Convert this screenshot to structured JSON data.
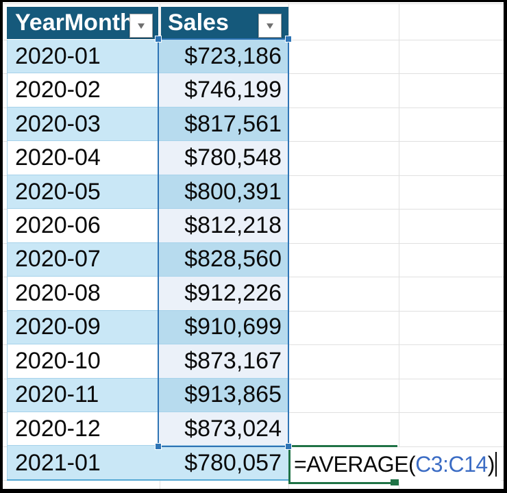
{
  "sheet": {
    "header": {
      "columns": [
        "YearMonth",
        "Sales"
      ],
      "filter_icon": "▼"
    },
    "rows": [
      {
        "year_month": "2020-01",
        "sales": "$723,186",
        "selected": true
      },
      {
        "year_month": "2020-02",
        "sales": "$746,199",
        "selected": true
      },
      {
        "year_month": "2020-03",
        "sales": "$817,561",
        "selected": true
      },
      {
        "year_month": "2020-04",
        "sales": "$780,548",
        "selected": true
      },
      {
        "year_month": "2020-05",
        "sales": "$800,391",
        "selected": true
      },
      {
        "year_month": "2020-06",
        "sales": "$812,218",
        "selected": true
      },
      {
        "year_month": "2020-07",
        "sales": "$828,560",
        "selected": true
      },
      {
        "year_month": "2020-08",
        "sales": "$912,226",
        "selected": true
      },
      {
        "year_month": "2020-09",
        "sales": "$910,699",
        "selected": true
      },
      {
        "year_month": "2020-10",
        "sales": "$873,167",
        "selected": true
      },
      {
        "year_month": "2020-11",
        "sales": "$913,865",
        "selected": true
      },
      {
        "year_month": "2020-12",
        "sales": "$873,024",
        "selected": true
      },
      {
        "year_month": "2021-01",
        "sales": "$780,057",
        "selected": false
      }
    ],
    "formula_cell": {
      "text_before": "=AVERAGE(",
      "range_ref": "C3:C14",
      "text_after": ")"
    },
    "selection_range": "C3:C14",
    "colors": {
      "header_bg": "#15597B",
      "band": "#C9E7F6",
      "band_selected": "#B7DBEE",
      "white_selected": "#EBF1F9",
      "selection_border": "#2E74B5",
      "edit_border": "#1F7245",
      "range_ref_text": "#3B6CC4",
      "gridline": "#E0E0E0",
      "row_divider": "#A6D2EA",
      "table_bottom_border": "#54A7D4"
    }
  }
}
